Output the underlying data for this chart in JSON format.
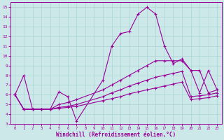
{
  "xlabel": "Windchill (Refroidissement éolien,°C)",
  "xlim": [
    -0.5,
    23.5
  ],
  "ylim": [
    3,
    15.5
  ],
  "xticks": [
    0,
    1,
    2,
    3,
    4,
    5,
    6,
    7,
    8,
    9,
    10,
    11,
    12,
    13,
    14,
    15,
    16,
    17,
    18,
    19,
    20,
    21,
    22,
    23
  ],
  "yticks": [
    3,
    4,
    5,
    6,
    7,
    8,
    9,
    10,
    11,
    12,
    13,
    14,
    15
  ],
  "bg_color": "#cce8e8",
  "line_color": "#990099",
  "grid_color": "#aad4d4",
  "line1_x": [
    0,
    1,
    2,
    3,
    4,
    5,
    6,
    7,
    10,
    11,
    12,
    13,
    14,
    15,
    16,
    17,
    18,
    19,
    20,
    21,
    22,
    23
  ],
  "line1_y": [
    6,
    8,
    4.5,
    4.5,
    4.5,
    6.3,
    5.8,
    3.3,
    7.5,
    11.0,
    12.3,
    12.5,
    14.3,
    15.0,
    14.3,
    11.0,
    9.2,
    9.7,
    8.5,
    6.2,
    8.5,
    6.5
  ],
  "line2_x": [
    0,
    1,
    2,
    3,
    4,
    5,
    6,
    7,
    10,
    11,
    12,
    13,
    14,
    15,
    16,
    17,
    18,
    19,
    20,
    21,
    22,
    23
  ],
  "line2_y": [
    6,
    4.5,
    4.5,
    4.5,
    4.5,
    5.0,
    5.2,
    5.5,
    6.5,
    7.0,
    7.5,
    8.0,
    8.5,
    9.0,
    9.5,
    9.5,
    9.5,
    9.5,
    8.5,
    8.5,
    6.2,
    6.5
  ],
  "line3_x": [
    0,
    1,
    2,
    3,
    4,
    5,
    6,
    7,
    10,
    11,
    12,
    13,
    14,
    15,
    16,
    17,
    18,
    19,
    20,
    21,
    22,
    23
  ],
  "line3_y": [
    6,
    4.5,
    4.5,
    4.5,
    4.5,
    4.7,
    4.8,
    5.0,
    5.8,
    6.2,
    6.5,
    6.9,
    7.2,
    7.5,
    7.8,
    8.0,
    8.2,
    8.4,
    5.8,
    5.9,
    6.0,
    6.2
  ],
  "line4_x": [
    0,
    1,
    2,
    3,
    4,
    5,
    6,
    7,
    10,
    11,
    12,
    13,
    14,
    15,
    16,
    17,
    18,
    19,
    20,
    21,
    22,
    23
  ],
  "line4_y": [
    6,
    4.5,
    4.5,
    4.5,
    4.5,
    4.6,
    4.7,
    4.8,
    5.4,
    5.6,
    5.8,
    6.1,
    6.3,
    6.5,
    6.7,
    6.9,
    7.1,
    7.3,
    5.5,
    5.6,
    5.7,
    5.9
  ]
}
